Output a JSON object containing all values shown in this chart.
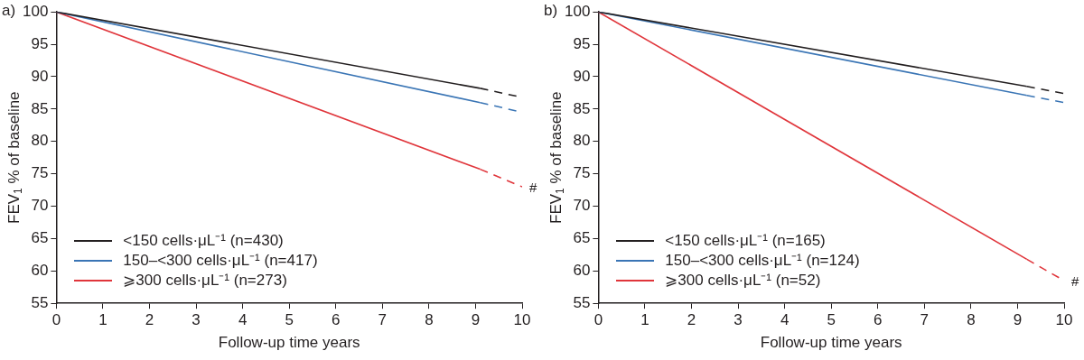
{
  "chart_data": [
    {
      "type": "line",
      "title": "a)",
      "xlabel": "Follow-up time years",
      "ylabel": "FEV$_{1}$ % of baseline",
      "xlim": [
        0,
        10
      ],
      "xticks": [
        0,
        1,
        2,
        3,
        4,
        5,
        6,
        7,
        8,
        9,
        10
      ],
      "ylim": [
        55,
        100
      ],
      "yticks": [
        55,
        60,
        65,
        70,
        75,
        80,
        85,
        90,
        95,
        100
      ],
      "grid": false,
      "legend": "bottom left",
      "marker": "none",
      "series": [
        {
          "name": "<150 cells·μL⁻¹ (n=430)",
          "color": "#231f20",
          "x": [
            0,
            9.1
          ],
          "values": [
            100,
            88.2
          ],
          "line_style": "solid"
        },
        {
          "name": "150–<300 cells·μL⁻¹ (n=417)",
          "color": "#3a75b5",
          "x": [
            0,
            9.1
          ],
          "values": [
            100,
            86.0
          ],
          "line_style": "solid"
        },
        {
          "name": "⩾300 cells·μL⁻¹ (n=273)",
          "color": "#e0353b",
          "x": [
            0,
            9.1
          ],
          "values": [
            100,
            75.7
          ],
          "line_style": "solid"
        },
        {
          "color": "#231f20",
          "x": [
            9.1,
            10
          ],
          "values": [
            88.2,
            86.8
          ],
          "line_style": "dashed"
        },
        {
          "color": "#3a75b5",
          "x": [
            9.1,
            10
          ],
          "values": [
            86.0,
            84.5
          ],
          "line_style": "dashed"
        },
        {
          "color": "#e0353b",
          "x": [
            9.1,
            10
          ],
          "values": [
            75.7,
            73.0
          ],
          "line_style": "dashed"
        }
      ],
      "annotations": [
        {
          "text": "#",
          "x": 10,
          "y": 73.0
        }
      ]
    },
    {
      "type": "line",
      "title": "b)",
      "xlabel": "Follow-up time years",
      "ylabel": "FEV$_{1}$ % of baseline",
      "xlim": [
        0,
        10
      ],
      "xticks": [
        0,
        1,
        2,
        3,
        4,
        5,
        6,
        7,
        8,
        9,
        10
      ],
      "ylim": [
        55,
        100
      ],
      "yticks": [
        55,
        60,
        65,
        70,
        75,
        80,
        85,
        90,
        95,
        100
      ],
      "grid": false,
      "legend": "bottom left",
      "marker": "none",
      "series": [
        {
          "name": "<150 cells·μL⁻¹ (n=165)",
          "color": "#231f20",
          "x": [
            0,
            9.2
          ],
          "values": [
            100,
            88.5
          ],
          "line_style": "solid"
        },
        {
          "name": "150–<300 cells·μL⁻¹ (n=124)",
          "color": "#3a75b5",
          "x": [
            0,
            9.2
          ],
          "values": [
            100,
            87.1
          ],
          "line_style": "solid"
        },
        {
          "name": "⩾300 cells·μL⁻¹ (n=52)",
          "color": "#e0353b",
          "x": [
            0,
            9.2
          ],
          "values": [
            100,
            61.8
          ],
          "line_style": "solid"
        },
        {
          "color": "#231f20",
          "x": [
            9.2,
            10
          ],
          "values": [
            88.5,
            87.4
          ],
          "line_style": "dashed"
        },
        {
          "color": "#3a75b5",
          "x": [
            9.2,
            10
          ],
          "values": [
            87.1,
            86.0
          ],
          "line_style": "dashed"
        },
        {
          "color": "#e0353b",
          "x": [
            9.2,
            10
          ],
          "values": [
            61.8,
            58.5
          ],
          "line_style": "dashed"
        }
      ],
      "annotations": [
        {
          "text": "#",
          "x": 10,
          "y": 58.5
        }
      ]
    }
  ]
}
